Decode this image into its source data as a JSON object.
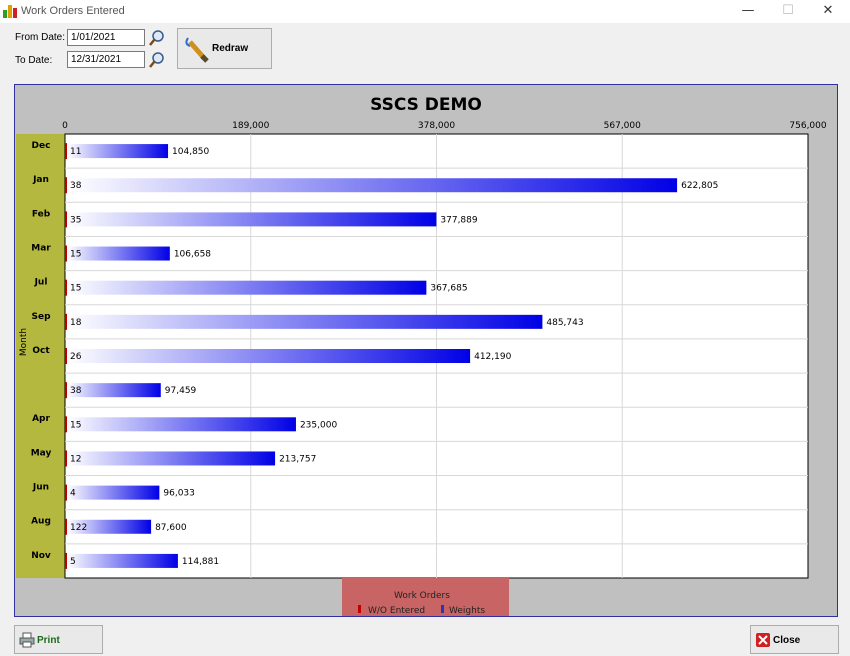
{
  "window": {
    "title": "Work Orders Entered",
    "minimize": "—",
    "maximize": "☐",
    "close": "✕"
  },
  "filters": {
    "from_label": "From Date:",
    "from_value": "1/01/2021",
    "to_label": "To Date:",
    "to_value": "12/31/2021"
  },
  "buttons": {
    "redraw": "Redraw",
    "print": "Print",
    "close": "Close"
  },
  "colors": {
    "bar_start": "#ffffff",
    "bar_end": "#0000e6",
    "category_band": "#b5b83f",
    "legend_bg": "#c86464",
    "wo_marker": "#c00000",
    "plot_bg": "#ffffff",
    "frame_bg": "#c0c0c0"
  },
  "chart_data": {
    "type": "bar",
    "orientation": "horizontal",
    "title": "SSCS DEMO",
    "ylabel": "Month",
    "xlim": [
      0,
      756000
    ],
    "xticks": [
      "0",
      "189,000",
      "378,000",
      "567,000",
      "756,000"
    ],
    "xtick_values": [
      0,
      189000,
      378000,
      567000,
      756000
    ],
    "grid": true,
    "categories": [
      "Dec",
      "Jan",
      "Feb",
      "Mar",
      "Jul",
      "Sep",
      "Oct",
      "",
      "Apr",
      "May",
      "Jun",
      "Aug",
      "Nov"
    ],
    "series": [
      {
        "name": "W/O Entered",
        "values": [
          11,
          38,
          35,
          15,
          15,
          18,
          26,
          38,
          15,
          12,
          4,
          122,
          5
        ]
      },
      {
        "name": "Weights",
        "values": [
          104850,
          622805,
          377889,
          106658,
          367685,
          485743,
          412190,
          97459,
          235000,
          213757,
          96033,
          87600,
          114881
        ]
      }
    ],
    "weight_labels": [
      "104,850",
      "622,805",
      "377,889",
      "106,658",
      "367,685",
      "485,743",
      "412,190",
      "97,459",
      "235,000",
      "213,757",
      "96,033",
      "87,600",
      "114,881"
    ],
    "legend": {
      "title": "Work Orders",
      "placement": "bottom-center",
      "entries": [
        "W/O Entered",
        "Weights"
      ]
    }
  }
}
